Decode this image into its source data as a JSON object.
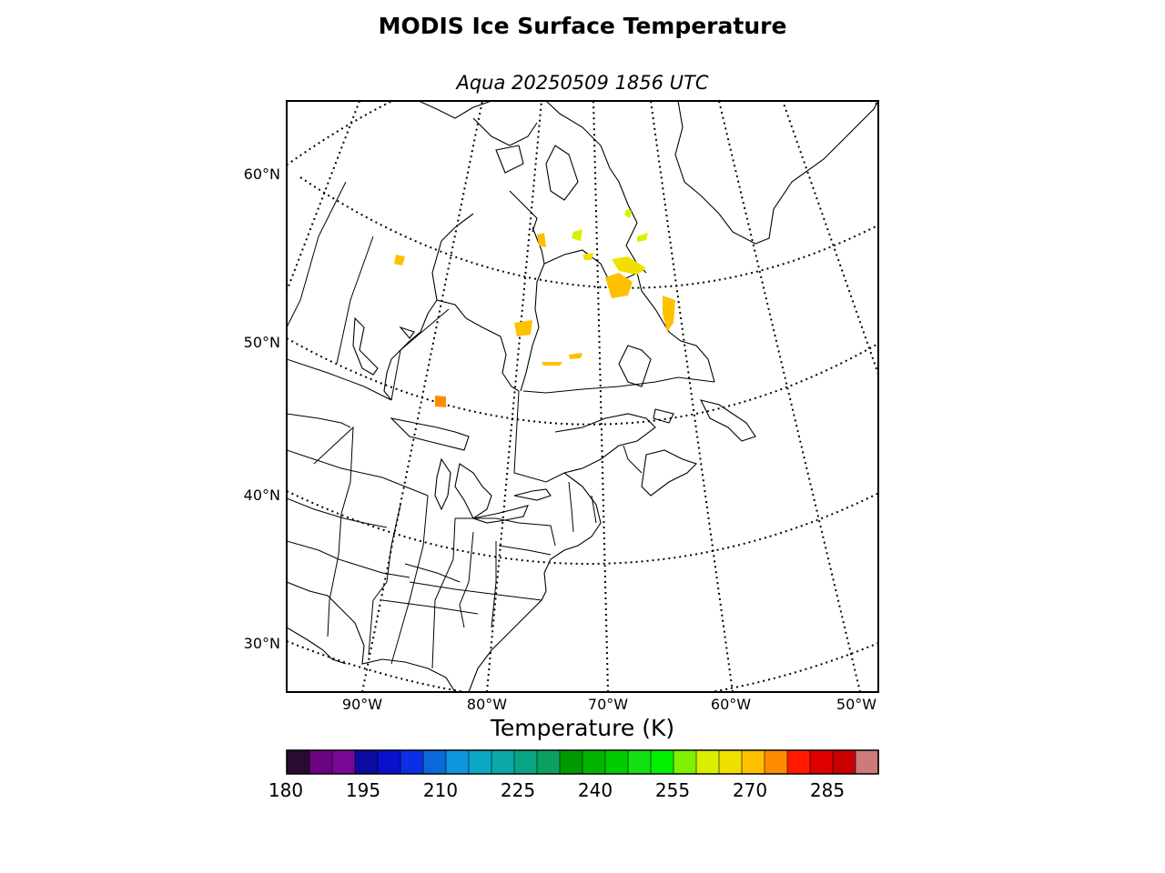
{
  "title": "MODIS Ice Surface Temperature",
  "subtitle": "Aqua 20250509 1856 UTC",
  "colorbar": {
    "label": "Temperature (K)",
    "ticks": [
      "180",
      "195",
      "210",
      "225",
      "240",
      "255",
      "270",
      "285"
    ],
    "colors": [
      "#2a0a33",
      "#6c0380",
      "#7a0894",
      "#0c0ca0",
      "#0a10cc",
      "#0c2ee6",
      "#0b68d8",
      "#0d96de",
      "#0aa8c4",
      "#0aa8a8",
      "#08a484",
      "#0ca060",
      "#009900",
      "#00b400",
      "#00cc00",
      "#14e014",
      "#00f000",
      "#7ef000",
      "#d8f000",
      "#f0e000",
      "#ffc000",
      "#ff8c00",
      "#ff1a00",
      "#e00000",
      "#c80000",
      "#cc7a7a"
    ]
  },
  "map": {
    "lat_labels": [
      "60°N",
      "50°N",
      "40°N",
      "30°N"
    ],
    "lon_labels": [
      "90°W",
      "80°W",
      "70°W",
      "60°W",
      "50°W"
    ]
  }
}
